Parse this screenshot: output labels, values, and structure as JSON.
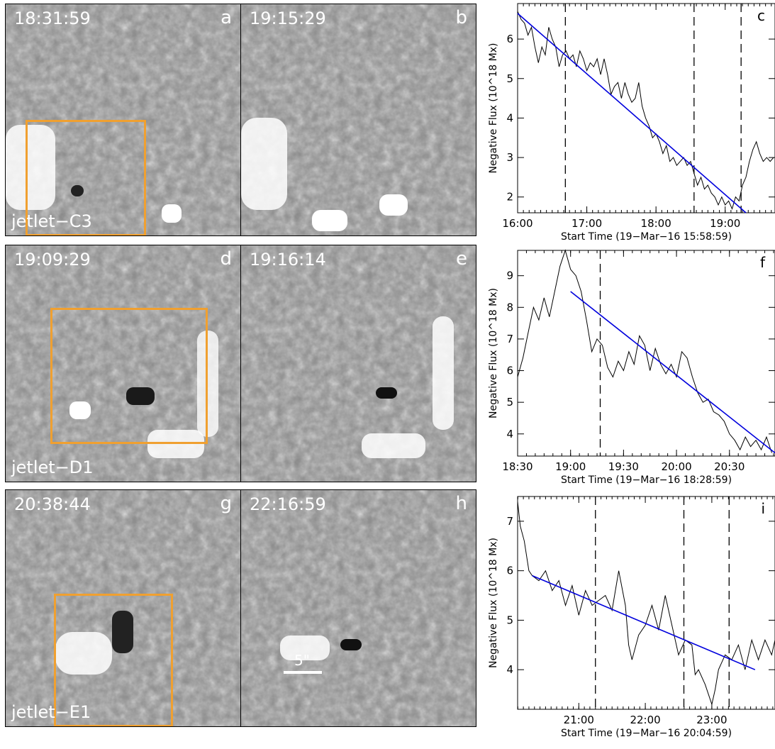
{
  "images": [
    {
      "time": "18:31:59",
      "letter": "a",
      "label": "jetlet−C3"
    },
    {
      "time": "19:15:29",
      "letter": "b",
      "label": ""
    },
    {
      "time": "19:09:29",
      "letter": "d",
      "label": "jetlet−D1"
    },
    {
      "time": "19:16:14",
      "letter": "e",
      "label": ""
    },
    {
      "time": "20:38:44",
      "letter": "g",
      "label": "jetlet−E1"
    },
    {
      "time": "22:16:59",
      "letter": "h",
      "label": ""
    }
  ],
  "scale_bar_label": "5\"",
  "colors": {
    "box": "#f0a030",
    "fit_line": "#0000dd",
    "curve": "#000000"
  },
  "chart_data": [
    {
      "type": "line",
      "panel_letter": "c",
      "ylabel": "Negative Flux (10^18 Mx)",
      "xlabel": "Start Time (19−Mar−16 15:58:59)",
      "x_ticks": [
        "16:00",
        "17:00",
        "18:00",
        "19:00"
      ],
      "y_ticks": [
        "2",
        "3",
        "4",
        "5",
        "6"
      ],
      "xlim_hours": [
        16.0,
        19.72
      ],
      "ylim": [
        1.6,
        6.9
      ],
      "series": [
        {
          "values": [
            [
              16.0,
              6.7
            ],
            [
              16.05,
              6.5
            ],
            [
              16.1,
              6.4
            ],
            [
              16.15,
              6.1
            ],
            [
              16.2,
              6.3
            ],
            [
              16.25,
              5.8
            ],
            [
              16.3,
              5.4
            ],
            [
              16.35,
              5.8
            ],
            [
              16.4,
              5.6
            ],
            [
              16.45,
              6.3
            ],
            [
              16.5,
              6.0
            ],
            [
              16.55,
              5.8
            ],
            [
              16.6,
              5.3
            ],
            [
              16.65,
              5.6
            ],
            [
              16.7,
              5.7
            ],
            [
              16.75,
              5.5
            ],
            [
              16.8,
              5.6
            ],
            [
              16.85,
              5.3
            ],
            [
              16.9,
              5.7
            ],
            [
              16.95,
              5.5
            ],
            [
              17.0,
              5.2
            ],
            [
              17.05,
              5.4
            ],
            [
              17.1,
              5.3
            ],
            [
              17.15,
              5.5
            ],
            [
              17.2,
              5.1
            ],
            [
              17.25,
              5.5
            ],
            [
              17.3,
              5.1
            ],
            [
              17.35,
              4.6
            ],
            [
              17.4,
              4.8
            ],
            [
              17.45,
              4.9
            ],
            [
              17.5,
              4.5
            ],
            [
              17.55,
              4.9
            ],
            [
              17.6,
              4.6
            ],
            [
              17.65,
              4.4
            ],
            [
              17.7,
              4.5
            ],
            [
              17.75,
              4.9
            ],
            [
              17.8,
              4.3
            ],
            [
              17.85,
              4.0
            ],
            [
              17.9,
              3.8
            ],
            [
              17.95,
              3.5
            ],
            [
              18.0,
              3.6
            ],
            [
              18.05,
              3.4
            ],
            [
              18.1,
              3.1
            ],
            [
              18.15,
              3.3
            ],
            [
              18.2,
              2.9
            ],
            [
              18.25,
              3.0
            ],
            [
              18.3,
              2.8
            ],
            [
              18.35,
              2.9
            ],
            [
              18.4,
              3.0
            ],
            [
              18.45,
              2.8
            ],
            [
              18.5,
              2.9
            ],
            [
              18.55,
              2.6
            ],
            [
              18.6,
              2.3
            ],
            [
              18.65,
              2.5
            ],
            [
              18.7,
              2.2
            ],
            [
              18.75,
              2.3
            ],
            [
              18.8,
              2.1
            ],
            [
              18.85,
              2.0
            ],
            [
              18.9,
              1.8
            ],
            [
              18.95,
              2.0
            ],
            [
              19.0,
              1.8
            ],
            [
              19.05,
              1.9
            ],
            [
              19.1,
              1.7
            ],
            [
              19.15,
              2.0
            ],
            [
              19.2,
              1.9
            ],
            [
              19.25,
              2.3
            ],
            [
              19.3,
              2.5
            ],
            [
              19.35,
              2.9
            ],
            [
              19.4,
              3.2
            ],
            [
              19.45,
              3.4
            ],
            [
              19.5,
              3.1
            ],
            [
              19.55,
              2.9
            ],
            [
              19.6,
              3.0
            ],
            [
              19.65,
              2.9
            ],
            [
              19.7,
              3.0
            ]
          ]
        }
      ],
      "fit_line": [
        [
          16.0,
          6.65
        ],
        [
          19.3,
          1.6
        ]
      ],
      "dashed_lines_x": [
        16.69,
        18.55,
        19.23
      ]
    },
    {
      "type": "line",
      "panel_letter": "f",
      "ylabel": "Negative Flux (10^18 Mx)",
      "xlabel": "Start Time (19−Mar−16 18:28:59)",
      "x_ticks": [
        "18:30",
        "19:00",
        "19:30",
        "20:00",
        "20:30"
      ],
      "y_ticks": [
        "4",
        "5",
        "6",
        "7",
        "8",
        "9"
      ],
      "xlim_hours": [
        18.5,
        20.93
      ],
      "ylim": [
        3.3,
        9.8
      ],
      "series": [
        {
          "values": [
            [
              18.5,
              5.8
            ],
            [
              18.55,
              6.4
            ],
            [
              18.6,
              7.2
            ],
            [
              18.65,
              8.0
            ],
            [
              18.7,
              7.6
            ],
            [
              18.75,
              8.3
            ],
            [
              18.8,
              7.7
            ],
            [
              18.85,
              8.5
            ],
            [
              18.9,
              9.3
            ],
            [
              18.95,
              9.8
            ],
            [
              19.0,
              9.2
            ],
            [
              19.05,
              9.0
            ],
            [
              19.1,
              8.5
            ],
            [
              19.15,
              7.6
            ],
            [
              19.2,
              6.6
            ],
            [
              19.25,
              7.0
            ],
            [
              19.3,
              6.8
            ],
            [
              19.35,
              6.1
            ],
            [
              19.4,
              5.8
            ],
            [
              19.45,
              6.3
            ],
            [
              19.5,
              6.0
            ],
            [
              19.55,
              6.6
            ],
            [
              19.6,
              6.2
            ],
            [
              19.65,
              7.1
            ],
            [
              19.7,
              6.8
            ],
            [
              19.75,
              6.0
            ],
            [
              19.8,
              6.7
            ],
            [
              19.85,
              6.2
            ],
            [
              19.9,
              5.9
            ],
            [
              19.95,
              6.2
            ],
            [
              20.0,
              5.8
            ],
            [
              20.05,
              6.6
            ],
            [
              20.1,
              6.4
            ],
            [
              20.15,
              5.8
            ],
            [
              20.2,
              5.3
            ],
            [
              20.25,
              5.0
            ],
            [
              20.3,
              5.1
            ],
            [
              20.35,
              4.7
            ],
            [
              20.4,
              4.6
            ],
            [
              20.45,
              4.4
            ],
            [
              20.5,
              4.0
            ],
            [
              20.55,
              3.8
            ],
            [
              20.6,
              3.5
            ],
            [
              20.65,
              3.9
            ],
            [
              20.7,
              3.6
            ],
            [
              20.75,
              3.8
            ],
            [
              20.8,
              3.5
            ],
            [
              20.85,
              3.9
            ],
            [
              20.9,
              3.4
            ]
          ]
        }
      ],
      "fit_line": [
        [
          19.0,
          8.5
        ],
        [
          20.93,
          3.4
        ]
      ],
      "dashed_lines_x": [
        19.28
      ]
    },
    {
      "type": "line",
      "panel_letter": "i",
      "ylabel": "Negative Flux (10^18 Mx)",
      "xlabel": "Start Time (19−Mar−16 20:04:59)",
      "x_ticks": [
        "21:00",
        "22:00",
        "23:00"
      ],
      "y_ticks": [
        "4",
        "5",
        "6",
        "7"
      ],
      "xlim_hours": [
        20.08,
        23.95
      ],
      "ylim": [
        3.2,
        7.5
      ],
      "series": [
        {
          "values": [
            [
              20.08,
              7.4
            ],
            [
              20.12,
              6.9
            ],
            [
              20.18,
              6.6
            ],
            [
              20.25,
              6.0
            ],
            [
              20.3,
              5.9
            ],
            [
              20.4,
              5.8
            ],
            [
              20.5,
              6.0
            ],
            [
              20.6,
              5.6
            ],
            [
              20.7,
              5.8
            ],
            [
              20.8,
              5.3
            ],
            [
              20.9,
              5.7
            ],
            [
              21.0,
              5.1
            ],
            [
              21.1,
              5.6
            ],
            [
              21.2,
              5.3
            ],
            [
              21.3,
              5.4
            ],
            [
              21.4,
              5.5
            ],
            [
              21.5,
              5.2
            ],
            [
              21.6,
              6.0
            ],
            [
              21.7,
              5.3
            ],
            [
              21.75,
              4.5
            ],
            [
              21.8,
              4.2
            ],
            [
              21.9,
              4.7
            ],
            [
              22.0,
              4.9
            ],
            [
              22.1,
              5.3
            ],
            [
              22.2,
              4.8
            ],
            [
              22.3,
              5.5
            ],
            [
              22.4,
              4.9
            ],
            [
              22.5,
              4.3
            ],
            [
              22.6,
              4.6
            ],
            [
              22.7,
              4.5
            ],
            [
              22.75,
              3.9
            ],
            [
              22.8,
              4.0
            ],
            [
              22.9,
              3.7
            ],
            [
              23.0,
              3.3
            ],
            [
              23.05,
              3.6
            ],
            [
              23.1,
              4.0
            ],
            [
              23.2,
              4.3
            ],
            [
              23.3,
              4.2
            ],
            [
              23.4,
              4.5
            ],
            [
              23.5,
              4.0
            ],
            [
              23.6,
              4.6
            ],
            [
              23.7,
              4.2
            ],
            [
              23.8,
              4.6
            ],
            [
              23.9,
              4.3
            ],
            [
              23.95,
              4.6
            ]
          ]
        }
      ],
      "fit_line": [
        [
          20.3,
          5.9
        ],
        [
          23.65,
          4.0
        ]
      ],
      "dashed_lines_x": [
        21.25,
        22.58,
        23.26
      ]
    }
  ]
}
